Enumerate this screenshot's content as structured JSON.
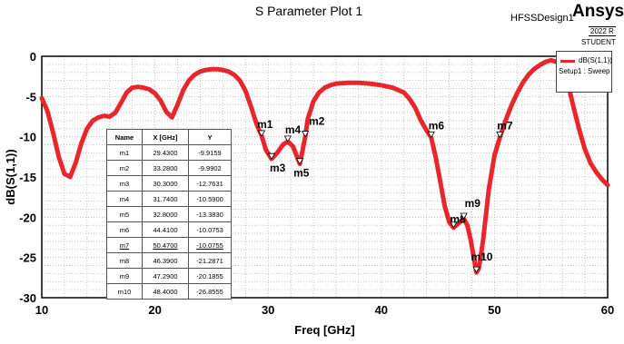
{
  "header": {
    "title": "S Parameter Plot 1",
    "design": "HFSSDesign1",
    "brand": "Ansys",
    "release": "2022 R",
    "student": "STUDENT"
  },
  "legend": {
    "series_name": "dB(S(1,1))",
    "setup": "Setup1 : Sweep"
  },
  "marker_table": {
    "headers": [
      "Name",
      "X [GHz]",
      "Y"
    ],
    "rows": [
      [
        "m1",
        "29.4300",
        "-9.9159"
      ],
      [
        "m2",
        "33.2800",
        "-9.9902"
      ],
      [
        "m3",
        "30.3000",
        "-12.7631"
      ],
      [
        "m4",
        "31.7400",
        "-10.5900"
      ],
      [
        "m5",
        "32.8000",
        "-13.3830"
      ],
      [
        "m6",
        "44.4100",
        "-10.0753"
      ],
      [
        "m7",
        "50.4700",
        "-10.0755"
      ],
      [
        "m8",
        "46.3900",
        "-21.2871"
      ],
      [
        "m9",
        "47.2900",
        "-20.1855"
      ],
      [
        "m10",
        "48.4000",
        "-26.8555"
      ]
    ]
  },
  "chart_data": {
    "type": "line",
    "title": "S Parameter Plot 1",
    "xlabel": "Freq [GHz]",
    "ylabel": "dB(S(1,1))",
    "xlim": [
      10,
      60
    ],
    "ylim": [
      -30,
      0
    ],
    "xticks": [
      10,
      20,
      30,
      40,
      50,
      60
    ],
    "yticks": [
      0,
      -5,
      -10,
      -15,
      -20,
      -25,
      -30
    ],
    "grid": true,
    "legend_position": "top-right",
    "color": "#e8262b",
    "series": [
      {
        "name": "dB(S(1,1))",
        "x": [
          10,
          10.5,
          11,
          11.5,
          12,
          12.5,
          13,
          13.5,
          14,
          14.5,
          15,
          15.5,
          16,
          16.5,
          17,
          17.5,
          18,
          18.5,
          19,
          19.5,
          20,
          20.5,
          21,
          21.5,
          22,
          22.5,
          23,
          23.5,
          24,
          24.5,
          25,
          25.5,
          26,
          26.5,
          27,
          27.5,
          28,
          28.5,
          29,
          29.43,
          29.8,
          30.3,
          30.8,
          31.3,
          31.74,
          32.2,
          32.5,
          32.8,
          33.28,
          33.5,
          34,
          34.5,
          35,
          35.5,
          36,
          37,
          38,
          39,
          40,
          41,
          42,
          42.5,
          43,
          43.5,
          44,
          44.41,
          44.8,
          45.2,
          45.6,
          46,
          46.39,
          46.8,
          47.29,
          47.6,
          47.9,
          48.2,
          48.4,
          48.6,
          48.8,
          49,
          49.5,
          50,
          50.47,
          51,
          51.5,
          52,
          52.5,
          53,
          53.5,
          54,
          54.5,
          55,
          55.5,
          56,
          56.5,
          57,
          57.5,
          58,
          58.5,
          59,
          59.5,
          60
        ],
        "y": [
          -5.2,
          -6.8,
          -9.5,
          -12.5,
          -14.6,
          -15.0,
          -13.2,
          -10.8,
          -9.0,
          -8.0,
          -7.6,
          -7.4,
          -7.5,
          -7.0,
          -5.8,
          -4.5,
          -3.9,
          -3.8,
          -3.9,
          -4.1,
          -4.6,
          -5.5,
          -6.9,
          -7.6,
          -6.0,
          -4.2,
          -3.0,
          -2.3,
          -1.9,
          -1.7,
          -1.6,
          -1.6,
          -1.7,
          -1.9,
          -2.3,
          -3.0,
          -4.3,
          -6.3,
          -8.5,
          -9.9,
          -11.6,
          -12.76,
          -12.0,
          -11.0,
          -10.59,
          -11.2,
          -12.3,
          -13.38,
          -9.99,
          -7.8,
          -5.6,
          -4.5,
          -3.9,
          -3.6,
          -3.4,
          -3.3,
          -3.3,
          -3.4,
          -3.6,
          -3.9,
          -4.5,
          -5.3,
          -6.4,
          -8.0,
          -9.2,
          -10.08,
          -12.5,
          -15.5,
          -18.6,
          -20.6,
          -21.29,
          -20.8,
          -20.19,
          -21.0,
          -22.8,
          -25.2,
          -26.86,
          -26.4,
          -24.8,
          -22.8,
          -16.5,
          -12.3,
          -10.08,
          -7.9,
          -6.1,
          -4.6,
          -3.3,
          -2.3,
          -1.6,
          -1.1,
          -0.7,
          -0.5,
          -0.7,
          -1.6,
          -3.5,
          -6.4,
          -9.2,
          -11.6,
          -13.3,
          -14.4,
          -15.3,
          -16.0
        ]
      }
    ],
    "markers": [
      {
        "name": "m1",
        "x": 29.43,
        "y": -9.9159
      },
      {
        "name": "m2",
        "x": 33.28,
        "y": -9.9902
      },
      {
        "name": "m3",
        "x": 30.3,
        "y": -12.7631
      },
      {
        "name": "m4",
        "x": 31.74,
        "y": -10.59
      },
      {
        "name": "m5",
        "x": 32.8,
        "y": -13.383
      },
      {
        "name": "m6",
        "x": 44.41,
        "y": -10.0753
      },
      {
        "name": "m7",
        "x": 50.47,
        "y": -10.0755
      },
      {
        "name": "m8",
        "x": 46.39,
        "y": -21.2871
      },
      {
        "name": "m9",
        "x": 47.29,
        "y": -20.1855
      },
      {
        "name": "m10",
        "x": 48.4,
        "y": -26.8555
      }
    ]
  }
}
